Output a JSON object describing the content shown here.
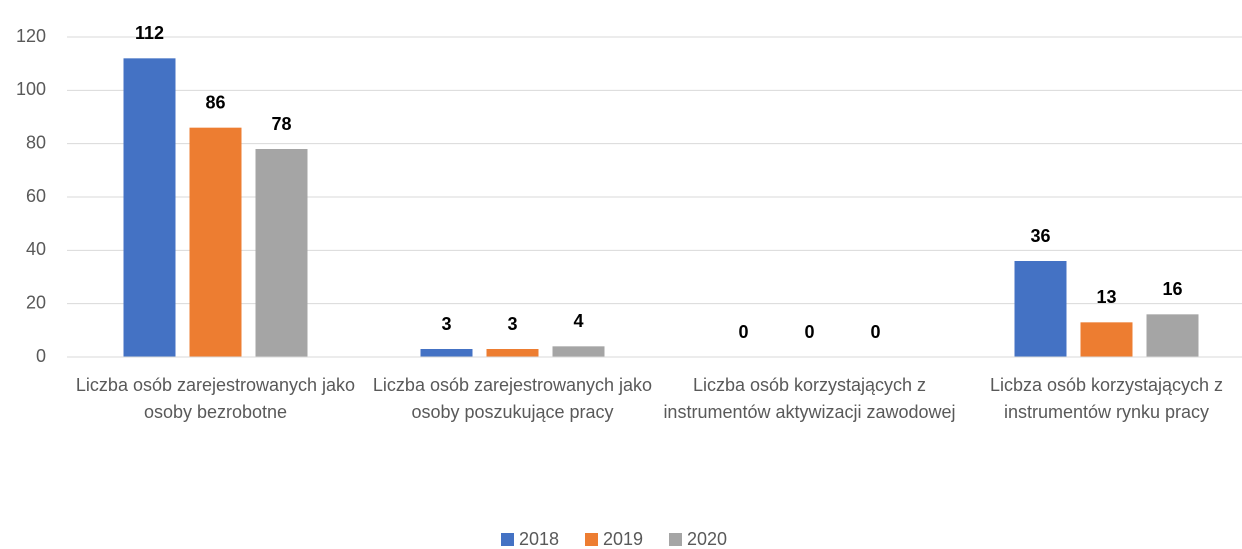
{
  "chart_data": {
    "type": "bar",
    "categories": [
      "Liczba osób zarejestrowanych jako osoby bezrobotne",
      "Liczba osób zarejestrowanych jako osoby poszukujące pracy",
      "Liczba osób korzystających z instrumentów aktywizacji zawodowej",
      "Licbza osób korzystających z instrumentów rynku pracy"
    ],
    "series": [
      {
        "name": "2018",
        "color": "#4472c4",
        "values": [
          112,
          3,
          0,
          36
        ]
      },
      {
        "name": "2019",
        "color": "#ed7d31",
        "values": [
          86,
          3,
          0,
          13
        ]
      },
      {
        "name": "2020",
        "color": "#a5a5a5",
        "values": [
          78,
          4,
          0,
          16
        ]
      }
    ],
    "ylim": [
      0,
      120
    ],
    "yticks": [
      0,
      20,
      40,
      60,
      80,
      100,
      120
    ],
    "grid": true,
    "legend": "bottom"
  }
}
